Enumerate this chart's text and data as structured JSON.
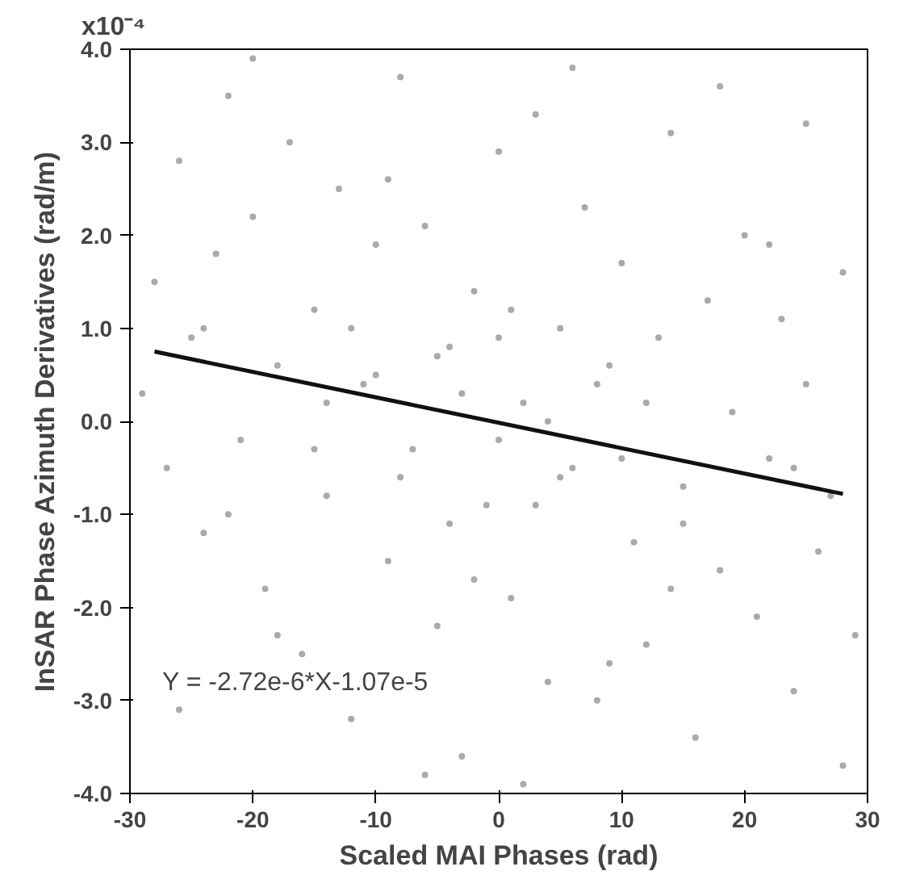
{
  "chart_data": {
    "type": "scatter",
    "xlabel": "Scaled MAI Phases (rad)",
    "ylabel": "InSAR Phase Azimuth Derivatives (rad/m)",
    "annotations": [
      "x10⁻⁴",
      "Y = -2.72e-6*X-1.07e-5"
    ],
    "xlim": [
      -30,
      30
    ],
    "xticks": [
      -30,
      -20,
      -10,
      0,
      10,
      20,
      30
    ],
    "ylim": [
      -4,
      4
    ],
    "yticks": [
      {
        "value": -4,
        "label": "-4.0"
      },
      {
        "value": -3,
        "label": "-3.0"
      },
      {
        "value": -2,
        "label": "-2.0"
      },
      {
        "value": -1,
        "label": "-1.0"
      },
      {
        "value": 0,
        "label": "0.0"
      },
      {
        "value": 1,
        "label": "1.0"
      },
      {
        "value": 2,
        "label": "2.0"
      },
      {
        "value": 3,
        "label": "3.0"
      },
      {
        "value": 4,
        "label": "4.0"
      }
    ],
    "grid": false,
    "series": [
      {
        "marker": "circle",
        "color": "#aaaaaa",
        "x": [
          -29,
          -28,
          -27,
          -26,
          -25,
          -24,
          -23,
          -22,
          -21,
          -20,
          -19,
          -18,
          -17,
          -16,
          -15,
          -14,
          -13,
          -12,
          -11,
          -10,
          -9,
          -8,
          -7,
          -6,
          -5,
          -4,
          -3,
          -2,
          -1,
          0,
          1,
          2,
          3,
          4,
          5,
          6,
          7,
          8,
          9,
          10,
          11,
          12,
          13,
          14,
          15,
          16,
          17,
          18,
          19,
          20,
          21,
          22,
          23,
          24,
          25,
          26,
          27,
          28,
          29,
          -15,
          -10,
          -5,
          0,
          5,
          10,
          15,
          -12,
          -8,
          -3,
          3,
          8,
          12,
          -18,
          -6,
          2,
          6,
          -20,
          18,
          25,
          -26,
          28,
          -22,
          22,
          -2,
          1,
          -9,
          9,
          0,
          -4,
          4,
          -14,
          14,
          -24,
          24
        ],
        "values": [
          0.3,
          1.5,
          -0.5,
          2.8,
          0.9,
          -1.2,
          1.8,
          3.5,
          -0.2,
          2.2,
          -1.8,
          0.6,
          3.0,
          -2.5,
          1.2,
          -0.8,
          2.5,
          -3.2,
          0.4,
          1.9,
          -1.5,
          3.7,
          -0.3,
          2.1,
          -2.2,
          0.8,
          -3.6,
          1.4,
          -0.9,
          2.9,
          -1.9,
          0.2,
          3.3,
          -2.8,
          1.0,
          -0.5,
          2.3,
          -3.0,
          0.6,
          1.7,
          -1.3,
          -2.4,
          0.9,
          3.1,
          -0.7,
          -3.4,
          1.3,
          -1.6,
          0.1,
          2.0,
          -2.1,
          -0.4,
          1.1,
          -2.9,
          0.4,
          -1.4,
          -0.8,
          1.6,
          -2.3,
          -0.3,
          0.5,
          0.7,
          -0.2,
          -0.6,
          -0.4,
          -1.1,
          1.0,
          -0.6,
          0.3,
          -0.9,
          0.4,
          0.2,
          -2.3,
          -3.8,
          -3.9,
          3.8,
          3.9,
          3.6,
          3.2,
          -3.1,
          -3.7,
          -1.0,
          1.9,
          -1.7,
          1.2,
          2.6,
          -2.6,
          0.9,
          -1.1,
          0.0,
          0.2,
          -1.8,
          1.0,
          -0.5
        ]
      },
      {
        "type": "line",
        "color": "#111111",
        "x": [
          -28,
          28
        ],
        "values": [
          0.75,
          -0.78
        ]
      }
    ]
  }
}
